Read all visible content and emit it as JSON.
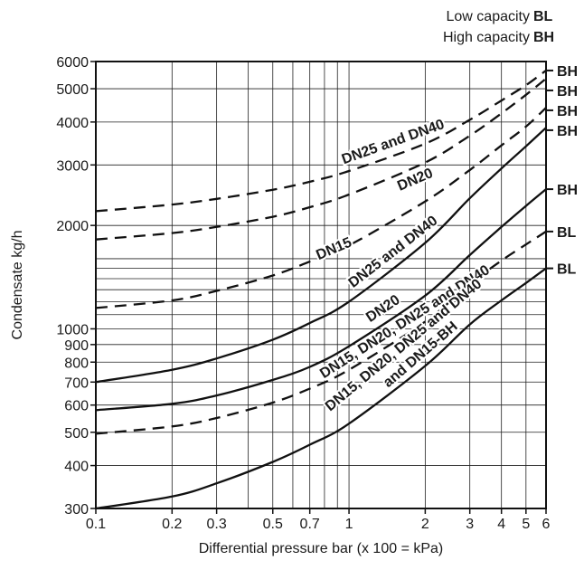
{
  "legend": {
    "items": [
      {
        "text": "Low capacity",
        "code": "BL"
      },
      {
        "text": "High capacity",
        "code": "BH"
      }
    ]
  },
  "chart_data": {
    "type": "line",
    "xlabel": "Differential pressure bar (x 100 = kPa)",
    "ylabel": "Condensate kg/h",
    "x_scale": "log",
    "y_scale": "log",
    "xlim": [
      0.1,
      6
    ],
    "ylim": [
      300,
      6000
    ],
    "grid": true,
    "x_ticks": [
      {
        "value": 0.1,
        "label": "0.1"
      },
      {
        "value": 0.2,
        "label": "0.2"
      },
      {
        "value": 0.3,
        "label": "0.3"
      },
      {
        "value": 0.5,
        "label": "0.5"
      },
      {
        "value": 0.7,
        "label": "0.7"
      },
      {
        "value": 1,
        "label": "1"
      },
      {
        "value": 2,
        "label": "2"
      },
      {
        "value": 3,
        "label": "3"
      },
      {
        "value": 4,
        "label": "4"
      },
      {
        "value": 5,
        "label": "5"
      },
      {
        "value": 6,
        "label": "6"
      }
    ],
    "y_ticks": [
      {
        "value": 300,
        "label": "300"
      },
      {
        "value": 400,
        "label": "400"
      },
      {
        "value": 500,
        "label": "500"
      },
      {
        "value": 600,
        "label": "600"
      },
      {
        "value": 700,
        "label": "700"
      },
      {
        "value": 800,
        "label": "800"
      },
      {
        "value": 900,
        "label": "900"
      },
      {
        "value": 1000,
        "label": "1000"
      },
      {
        "value": 2000,
        "label": "2000"
      },
      {
        "value": 3000,
        "label": "3000"
      },
      {
        "value": 4000,
        "label": "4000"
      },
      {
        "value": 5000,
        "label": "5000"
      },
      {
        "value": 6000,
        "label": "6000"
      }
    ],
    "series": [
      {
        "name": "DN25 and DN40",
        "capacity": "BH",
        "style": "dashed",
        "x": [
          0.1,
          0.2,
          0.3,
          0.5,
          0.7,
          1,
          2,
          3,
          4,
          5,
          6
        ],
        "y": [
          2200,
          2300,
          2390,
          2540,
          2680,
          2880,
          3460,
          4060,
          4620,
          5120,
          5650
        ]
      },
      {
        "name": "DN20",
        "capacity": "BH",
        "style": "dashed",
        "x": [
          0.1,
          0.2,
          0.3,
          0.5,
          0.7,
          1,
          2,
          3,
          4,
          5,
          6
        ],
        "y": [
          1820,
          1900,
          1980,
          2120,
          2260,
          2460,
          3050,
          3650,
          4240,
          4800,
          5350
        ]
      },
      {
        "name": "DN15",
        "capacity": "BH",
        "style": "dashed",
        "x": [
          0.1,
          0.2,
          0.3,
          0.5,
          0.7,
          1,
          2,
          3,
          4,
          5,
          6
        ],
        "y": [
          1150,
          1210,
          1290,
          1430,
          1570,
          1750,
          2350,
          2900,
          3420,
          3880,
          4400
        ]
      },
      {
        "name": "DN25 and DN40",
        "capacity": "BH",
        "style": "solid",
        "x": [
          0.1,
          0.2,
          0.3,
          0.5,
          0.7,
          1,
          2,
          3,
          4,
          5,
          6
        ],
        "y": [
          700,
          760,
          820,
          930,
          1040,
          1200,
          1780,
          2400,
          2930,
          3400,
          3850
        ]
      },
      {
        "name": "DN20",
        "capacity": "BH",
        "style": "solid",
        "x": [
          0.1,
          0.2,
          0.3,
          0.5,
          0.7,
          1,
          2,
          3,
          4,
          5,
          6
        ],
        "y": [
          580,
          605,
          640,
          710,
          775,
          890,
          1250,
          1640,
          1980,
          2280,
          2550
        ]
      },
      {
        "name": "DN15, DN20, DN25 and DN40",
        "capacity": "BL",
        "style": "dashed",
        "x": [
          0.1,
          0.2,
          0.3,
          0.5,
          0.7,
          1,
          2,
          3,
          4,
          5,
          6
        ],
        "y": [
          495,
          520,
          550,
          610,
          670,
          760,
          1050,
          1350,
          1580,
          1760,
          1920
        ]
      },
      {
        "name": "DN15, DN20, DN25 and DN40 and DN15-BH",
        "capacity": "BL",
        "style": "solid",
        "x": [
          0.1,
          0.2,
          0.3,
          0.5,
          0.7,
          1,
          2,
          3,
          4,
          5,
          6
        ],
        "y": [
          300,
          325,
          355,
          410,
          460,
          530,
          780,
          1030,
          1210,
          1360,
          1500
        ]
      }
    ],
    "curve_labels": [
      {
        "text": "DN25 and DN40",
        "series": 0
      },
      {
        "text": "DN20",
        "series": 1
      },
      {
        "text": "DN15",
        "series": 2
      },
      {
        "text": "DN25 and DN40",
        "series": 3
      },
      {
        "text": "DN20",
        "series": 4
      },
      {
        "text": "DN15, DN20, DN25 and DN40",
        "series": 5
      },
      {
        "text": "DN15, DN20, DN25 and DN40",
        "series": 6
      },
      {
        "text": "and DN15-BH",
        "series": 6
      }
    ]
  }
}
